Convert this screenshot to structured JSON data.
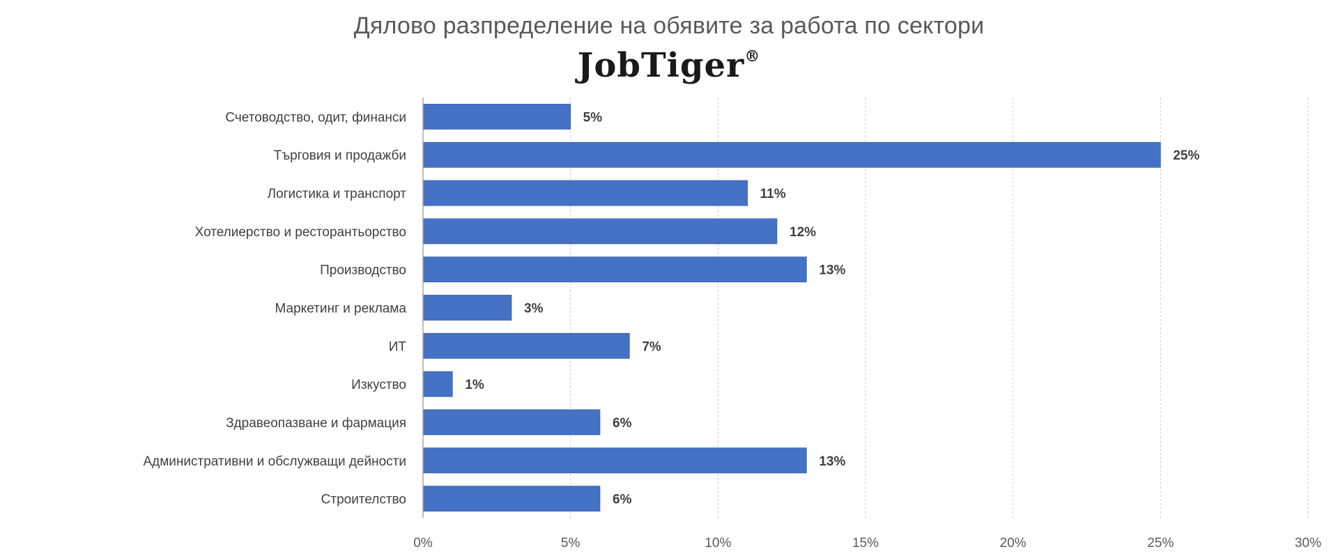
{
  "title": "Дялово разпределение на обявите за работа по сектори",
  "brand": {
    "name": "JobTiger",
    "mark": "®"
  },
  "chart_data": {
    "type": "bar",
    "orientation": "horizontal",
    "categories": [
      "Счетоводство, одит, финанси",
      "Търговия и продажби",
      "Логистика и транспорт",
      "Хотелиерство и ресторантьорство",
      "Производство",
      "Маркетинг и реклама",
      "ИТ",
      "Изкуство",
      "Здравеопазване и фармация",
      "Административни и обслужващи дейности",
      "Строителство"
    ],
    "values": [
      5,
      25,
      11,
      12,
      13,
      3,
      7,
      1,
      6,
      13,
      6
    ],
    "value_labels": [
      "5%",
      "25%",
      "11%",
      "12%",
      "13%",
      "3%",
      "7%",
      "1%",
      "6%",
      "13%",
      "6%"
    ],
    "xlim": [
      0,
      30
    ],
    "xticks": [
      0,
      5,
      10,
      15,
      20,
      25,
      30
    ],
    "xtick_labels": [
      "0%",
      "5%",
      "10%",
      "15%",
      "20%",
      "25%",
      "30%"
    ],
    "grid": true,
    "legend": "none",
    "bar_color": "#4472C4"
  }
}
